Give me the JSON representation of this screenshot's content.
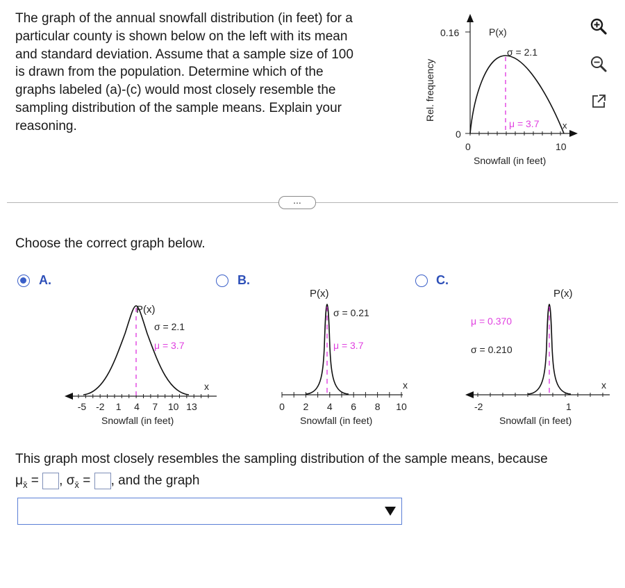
{
  "question": {
    "lines": [
      "The graph of the annual snowfall distribution (in feet) for a",
      "particular county is shown below on the left with its mean",
      "and standard deviation. Assume that a sample size of 100",
      "is drawn from the population. Determine which of the",
      "graphs labeled (a)-(c) would most closely resemble the",
      "sampling distribution of the sample means. Explain your",
      "reasoning."
    ]
  },
  "tools": [
    "zoom-in-icon",
    "zoom-out-icon",
    "popout-icon"
  ],
  "more_label": "...",
  "choose_label": "Choose the correct graph below.",
  "options": [
    {
      "letter": "A.",
      "selected": true
    },
    {
      "letter": "B.",
      "selected": false
    },
    {
      "letter": "C.",
      "selected": false
    }
  ],
  "answer": {
    "sentence": "This graph most closely resembles the sampling distribution of the sample means, because",
    "mu_label": "μ",
    "sigma_label": "σ",
    "eq": "=",
    "comma": ",",
    "tail": ", and the graph",
    "dropdown_value": ""
  },
  "chart_data": [
    {
      "id": "population",
      "type": "line",
      "ylabel": "Rel. frequency",
      "xlabel": "Snowfall (in feet)",
      "xaxis_label": "x",
      "yaxis_label": "P(x)",
      "xticks": [
        "0",
        "10"
      ],
      "yticks": [
        "0",
        "0.16"
      ],
      "annotations": [
        "σ = 2.1",
        "μ = 3.7"
      ],
      "mean": 3.7,
      "sd": 2.1,
      "xlim": [
        0,
        11
      ],
      "ylim": [
        0,
        0.16
      ]
    },
    {
      "id": "option-a",
      "type": "line",
      "xlabel": "Snowfall (in feet)",
      "xaxis_label": "x",
      "yaxis_label": "P(x)",
      "xticks": [
        "-5",
        "-2",
        "1",
        "4",
        "7",
        "10",
        "13"
      ],
      "annotations": [
        "σ = 2.1",
        "μ = 3.7"
      ],
      "mean": 3.7,
      "sd": 2.1
    },
    {
      "id": "option-b",
      "type": "line",
      "xlabel": "Snowfall (in feet)",
      "xaxis_label": "x",
      "yaxis_label": "P(x)",
      "xticks": [
        "0",
        "2",
        "4",
        "6",
        "8",
        "10"
      ],
      "annotations": [
        "σ = 0.21",
        "μ = 3.7"
      ],
      "mean": 3.7,
      "sd": 0.21
    },
    {
      "id": "option-c",
      "type": "line",
      "xlabel": "Snowfall (in feet)",
      "xaxis_label": "x",
      "yaxis_label": "P(x)",
      "xticks": [
        "-2",
        "1"
      ],
      "annotations": [
        "μ = 0.370",
        "σ = 0.210"
      ],
      "mean": 0.37,
      "sd": 0.21
    }
  ],
  "colors": {
    "accent": "#3a5fc8",
    "mean_line": "#e040e0",
    "curve": "#111111"
  }
}
